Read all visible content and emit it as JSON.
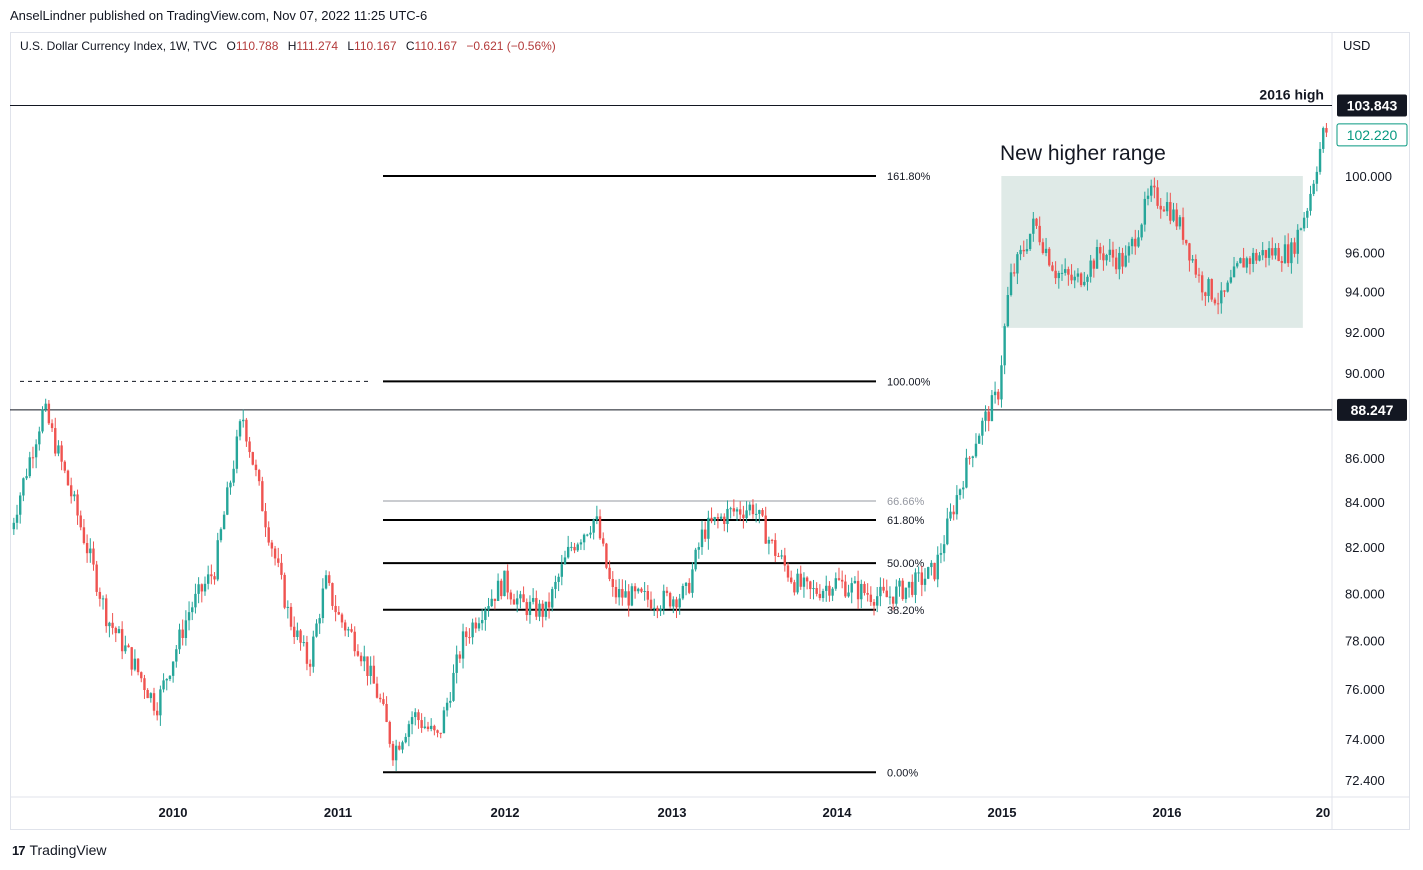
{
  "header": {
    "publisher": "AnselLindner published on TradingView.com, Nov 07, 2022 11:25 UTC-6"
  },
  "legend": {
    "symbol": "U.S. Dollar Currency Index, 1W, TVC",
    "o_label": "O",
    "o_value": "110.788",
    "h_label": "H",
    "h_value": "111.274",
    "l_label": "L",
    "l_value": "110.167",
    "c_label": "C",
    "c_value": "110.167",
    "change": "−0.621 (−0.56%)"
  },
  "footer": {
    "brand": "TradingView"
  },
  "colors": {
    "up": "#26a69a",
    "down": "#ef5350",
    "range_box": "#d4e3df",
    "last_price": "#089981"
  },
  "chart_data": {
    "type": "candlestick",
    "currency": "USD",
    "x_ticks": [
      "2010",
      "2011",
      "2012",
      "2013",
      "2014",
      "2015",
      "2016",
      "20"
    ],
    "y_ticks": [
      "72.400",
      "74.000",
      "76.000",
      "78.000",
      "80.000",
      "82.000",
      "84.000",
      "86.000",
      "90.000",
      "92.000",
      "94.000",
      "96.000",
      "100.000"
    ],
    "y_scale": "log",
    "price_labels": [
      {
        "value": 103.843,
        "text": "103.843",
        "style": "dark"
      },
      {
        "value": 102.22,
        "text": "102.220",
        "style": "last"
      },
      {
        "value": 88.247,
        "text": "88.247",
        "style": "dark"
      }
    ],
    "horizontal_lines": [
      {
        "value": 103.843,
        "label": "2016 high"
      },
      {
        "value": 88.247,
        "label": ""
      }
    ],
    "fibonacci": [
      {
        "level": "0.00%",
        "value": 72.7
      },
      {
        "level": "38.20%",
        "value": 79.3
      },
      {
        "level": "50.00%",
        "value": 81.3
      },
      {
        "level": "61.80%",
        "value": 83.2
      },
      {
        "level": "66.66%",
        "value": 84.05
      },
      {
        "level": "100.00%",
        "value": 89.6
      },
      {
        "level": "161.80%",
        "value": 100.0
      }
    ],
    "range_box": {
      "label": "New higher range",
      "x_start": "2015.0",
      "x_end": "2016.82",
      "low": 92.2,
      "high": 100.0
    },
    "anchors": [
      [
        2009.02,
        82.8
      ],
      [
        2009.22,
        88.3
      ],
      [
        2009.4,
        84.0
      ],
      [
        2009.6,
        79.0
      ],
      [
        2009.75,
        77.2
      ],
      [
        2009.9,
        75.3
      ],
      [
        2010.1,
        79.3
      ],
      [
        2010.25,
        81.0
      ],
      [
        2010.42,
        88.0
      ],
      [
        2010.55,
        83.5
      ],
      [
        2010.7,
        79.0
      ],
      [
        2010.82,
        77.0
      ],
      [
        2010.92,
        80.5
      ],
      [
        2011.0,
        79.0
      ],
      [
        2011.12,
        77.8
      ],
      [
        2011.25,
        75.5
      ],
      [
        2011.33,
        73.5
      ],
      [
        2011.45,
        75.0
      ],
      [
        2011.6,
        74.0
      ],
      [
        2011.75,
        78.0
      ],
      [
        2011.88,
        79.5
      ],
      [
        2012.0,
        80.5
      ],
      [
        2012.1,
        79.5
      ],
      [
        2012.25,
        79.2
      ],
      [
        2012.4,
        82.0
      ],
      [
        2012.55,
        83.3
      ],
      [
        2012.65,
        80.0
      ],
      [
        2012.8,
        79.8
      ],
      [
        2012.95,
        79.7
      ],
      [
        2013.1,
        80.0
      ],
      [
        2013.2,
        82.7
      ],
      [
        2013.35,
        83.5
      ],
      [
        2013.5,
        83.8
      ],
      [
        2013.62,
        82.0
      ],
      [
        2013.75,
        80.5
      ],
      [
        2013.85,
        80.0
      ],
      [
        2014.0,
        80.5
      ],
      [
        2014.1,
        80.2
      ],
      [
        2014.3,
        79.8
      ],
      [
        2014.5,
        80.5
      ],
      [
        2014.6,
        81.0
      ],
      [
        2014.72,
        84.0
      ],
      [
        2014.85,
        87.0
      ],
      [
        2014.98,
        89.0
      ],
      [
        2015.05,
        94.5
      ],
      [
        2015.2,
        97.5
      ],
      [
        2015.33,
        95.0
      ],
      [
        2015.45,
        94.5
      ],
      [
        2015.6,
        96.0
      ],
      [
        2015.75,
        95.5
      ],
      [
        2015.9,
        99.0
      ],
      [
        2016.0,
        98.5
      ],
      [
        2016.1,
        97.0
      ],
      [
        2016.2,
        94.5
      ],
      [
        2016.33,
        93.5
      ],
      [
        2016.45,
        95.5
      ],
      [
        2016.6,
        96.0
      ],
      [
        2016.75,
        96.0
      ],
      [
        2016.85,
        98.5
      ],
      [
        2016.95,
        102.5
      ],
      [
        2017.0,
        102.2
      ]
    ]
  }
}
